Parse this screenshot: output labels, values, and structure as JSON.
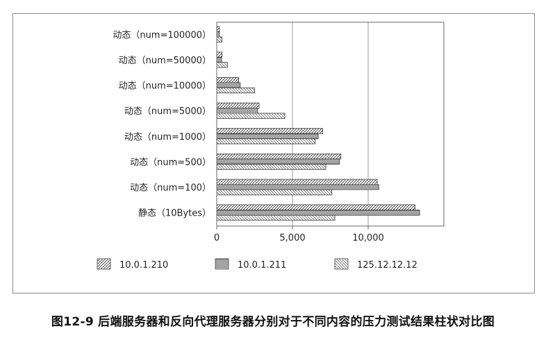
{
  "caption": "图12-9 后端服务器和反向代理服务器分别对于不同内容的压力测试结果柱状对比图",
  "chart_data": {
    "type": "bar",
    "orientation": "horizontal",
    "title": "",
    "xlabel": "",
    "ylabel": "",
    "xlim": [
      0,
      15000
    ],
    "xticks": [
      0,
      5000,
      10000
    ],
    "xtick_labels": [
      "0",
      "5,000",
      "10,000"
    ],
    "grid": true,
    "legend_position": "bottom",
    "categories": [
      "动态（num=100000）",
      "动态（num=50000）",
      "动态（num=10000）",
      "动态（num=5000）",
      "动态（num=1000）",
      "动态（num=500）",
      "动态（num=100）",
      "静态（10Bytes）"
    ],
    "series": [
      {
        "name": "10.0.1.210",
        "pattern": "diagonal",
        "values": [
          180,
          350,
          1450,
          2800,
          7000,
          8200,
          10600,
          13100
        ]
      },
      {
        "name": "10.0.1.211",
        "pattern": "horizontal",
        "values": [
          180,
          320,
          1550,
          2700,
          6700,
          8100,
          10700,
          13400
        ]
      },
      {
        "name": "125.12.12.12",
        "pattern": "backdiagonal",
        "values": [
          350,
          700,
          2500,
          4500,
          6500,
          7200,
          7600,
          7800
        ]
      }
    ]
  }
}
